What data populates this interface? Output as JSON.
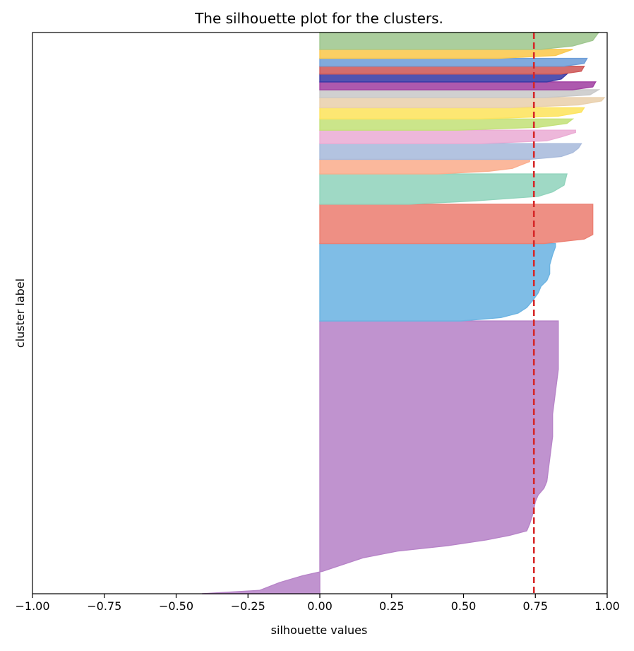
{
  "chart_data": {
    "type": "silhouette",
    "title": "The silhouette plot for the clusters.",
    "xlabel": "silhouette values",
    "ylabel": "cluster label",
    "xlim": [
      -1.0,
      1.0
    ],
    "ylim": [
      0,
      100
    ],
    "xticks": [
      "−1.00",
      "−0.75",
      "−0.50",
      "−0.25",
      "0.00",
      "0.25",
      "0.50",
      "0.75",
      "1.00"
    ],
    "xtick_values": [
      -1.0,
      -0.75,
      -0.5,
      -0.25,
      0.0,
      0.25,
      0.5,
      0.75,
      1.0
    ],
    "yticks": [],
    "grid": false,
    "average_silhouette": 0.745,
    "average_line_color": "#d62728",
    "clusters": [
      {
        "color": "#b784c8",
        "y_start": 0.0,
        "y_end": 48.6,
        "profile": [
          [
            0,
            -0.41
          ],
          [
            0.6,
            -0.21
          ],
          [
            2.0,
            -0.14
          ],
          [
            3.2,
            -0.06
          ],
          [
            4.0,
            0.01
          ],
          [
            5.2,
            0.08
          ],
          [
            6.4,
            0.15
          ],
          [
            7.6,
            0.27
          ],
          [
            8.6,
            0.45
          ],
          [
            9.6,
            0.58
          ],
          [
            10.4,
            0.66
          ],
          [
            11.2,
            0.72
          ],
          [
            12.4,
            0.73
          ],
          [
            14.0,
            0.74
          ],
          [
            16.4,
            0.75
          ],
          [
            17.6,
            0.76
          ],
          [
            18.8,
            0.78
          ],
          [
            20.0,
            0.79
          ],
          [
            24.0,
            0.8
          ],
          [
            28.0,
            0.81
          ],
          [
            32.0,
            0.81
          ],
          [
            36.0,
            0.82
          ],
          [
            40.0,
            0.83
          ],
          [
            44.0,
            0.83
          ],
          [
            48.6,
            0.83
          ]
        ]
      },
      {
        "color": "#6db4e2",
        "y_start": 48.6,
        "y_end": 62.4,
        "profile": [
          [
            0,
            0.49
          ],
          [
            0.6,
            0.63
          ],
          [
            1.4,
            0.69
          ],
          [
            2.4,
            0.72
          ],
          [
            3.6,
            0.74
          ],
          [
            5.0,
            0.76
          ],
          [
            6.2,
            0.77
          ],
          [
            7.2,
            0.79
          ],
          [
            8.4,
            0.8
          ],
          [
            10.0,
            0.8
          ],
          [
            11.8,
            0.81
          ],
          [
            13.2,
            0.82
          ],
          [
            13.8,
            0.82
          ]
        ]
      },
      {
        "color": "#ec8073",
        "y_start": 62.4,
        "y_end": 69.4,
        "profile": [
          [
            0,
            0.78
          ],
          [
            0.8,
            0.92
          ],
          [
            1.6,
            0.95
          ],
          [
            5.0,
            0.95
          ],
          [
            7.0,
            0.95
          ]
        ]
      },
      {
        "color": "#92d4bd",
        "y_start": 69.4,
        "y_end": 74.8,
        "profile": [
          [
            0,
            0.31
          ],
          [
            0.6,
            0.54
          ],
          [
            1.4,
            0.76
          ],
          [
            2.2,
            0.81
          ],
          [
            3.4,
            0.85
          ],
          [
            5.4,
            0.86
          ]
        ]
      },
      {
        "color": "#fbae8e",
        "y_start": 74.8,
        "y_end": 77.4,
        "profile": [
          [
            0,
            0.41
          ],
          [
            0.5,
            0.59
          ],
          [
            1.0,
            0.67
          ],
          [
            1.6,
            0.7
          ],
          [
            2.2,
            0.73
          ],
          [
            2.6,
            0.73
          ]
        ]
      },
      {
        "color": "#a9bbdc",
        "y_start": 77.4,
        "y_end": 80.2,
        "profile": [
          [
            0,
            0.73
          ],
          [
            0.5,
            0.84
          ],
          [
            1.2,
            0.88
          ],
          [
            2.0,
            0.9
          ],
          [
            2.8,
            0.91
          ]
        ]
      },
      {
        "color": "#ebadd5",
        "y_start": 80.2,
        "y_end": 82.6,
        "profile": [
          [
            0,
            0.56
          ],
          [
            0.5,
            0.79
          ],
          [
            1.2,
            0.84
          ],
          [
            2.0,
            0.89
          ],
          [
            2.4,
            0.89
          ]
        ]
      },
      {
        "color": "#c4e17a",
        "y_start": 82.6,
        "y_end": 84.6,
        "profile": [
          [
            0,
            0.48
          ],
          [
            0.5,
            0.76
          ],
          [
            1.2,
            0.86
          ],
          [
            2.0,
            0.88
          ]
        ]
      },
      {
        "color": "#fde45e",
        "y_start": 84.6,
        "y_end": 86.6,
        "profile": [
          [
            0,
            0.55
          ],
          [
            0.5,
            0.83
          ],
          [
            1.2,
            0.91
          ],
          [
            2.0,
            0.92
          ]
        ]
      },
      {
        "color": "#e9d0ad",
        "y_start": 86.6,
        "y_end": 88.4,
        "profile": [
          [
            0,
            0.66
          ],
          [
            0.5,
            0.9
          ],
          [
            1.2,
            0.98
          ],
          [
            1.8,
            0.99
          ]
        ]
      },
      {
        "color": "#c9c9c9",
        "y_start": 88.4,
        "y_end": 89.8,
        "profile": [
          [
            0,
            0.78
          ],
          [
            0.5,
            0.94
          ],
          [
            1.4,
            0.97
          ]
        ]
      },
      {
        "color": "#a242a3",
        "y_start": 89.8,
        "y_end": 91.2,
        "profile": [
          [
            0,
            0.88
          ],
          [
            0.5,
            0.95
          ],
          [
            1.4,
            0.96
          ]
        ]
      },
      {
        "color": "#3a3ba6",
        "y_start": 91.2,
        "y_end": 92.6,
        "profile": [
          [
            0,
            0.79
          ],
          [
            0.5,
            0.84
          ],
          [
            1.4,
            0.86
          ]
        ]
      },
      {
        "color": "#ce5959",
        "y_start": 92.6,
        "y_end": 94.0,
        "profile": [
          [
            0,
            0.84
          ],
          [
            0.5,
            0.91
          ],
          [
            1.4,
            0.92
          ]
        ]
      },
      {
        "color": "#6e9ed8",
        "y_start": 94.0,
        "y_end": 95.4,
        "profile": [
          [
            0,
            0.85
          ],
          [
            0.5,
            0.92
          ],
          [
            1.4,
            0.93
          ]
        ]
      },
      {
        "color": "#fbc84d",
        "y_start": 95.4,
        "y_end": 97.0,
        "profile": [
          [
            0,
            0.62
          ],
          [
            0.5,
            0.82
          ],
          [
            1.6,
            0.88
          ]
        ]
      },
      {
        "color": "#9fc78f",
        "y_start": 97.0,
        "y_end": 100.0,
        "profile": [
          [
            0,
            0.77
          ],
          [
            0.6,
            0.88
          ],
          [
            1.6,
            0.95
          ],
          [
            3.0,
            0.97
          ]
        ]
      }
    ]
  }
}
